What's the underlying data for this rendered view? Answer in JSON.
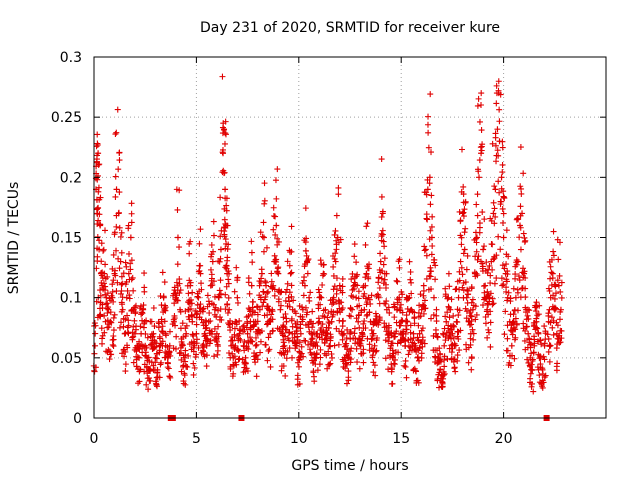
{
  "chart_data": {
    "type": "scatter",
    "title": "Day 231 of 2020, SRMTID for receiver kure",
    "xlabel": "GPS time / hours",
    "ylabel": "SRMTID / TECUs",
    "xlim": [
      0,
      25
    ],
    "ylim": [
      0,
      0.3
    ],
    "xticks": [
      0,
      5,
      10,
      15,
      20
    ],
    "xtick_labels": [
      "0",
      "5",
      "10",
      "15",
      "20"
    ],
    "yticks": [
      0,
      0.05,
      0.1,
      0.15,
      0.2,
      0.25,
      0.3
    ],
    "ytick_labels": [
      "0",
      "0.05",
      "0.1",
      "0.15",
      "0.2",
      "0.25",
      "0.3"
    ],
    "grid": true,
    "marker": "+",
    "color": "#e00000",
    "zero_markers_x": [
      3.75,
      3.85,
      7.2,
      22.1
    ],
    "series": [
      {
        "name": "SRMTID",
        "x": [
          0.05,
          0.1,
          0.15,
          0.2,
          0.25,
          0.3,
          0.35,
          0.4,
          0.5,
          0.6,
          0.7,
          0.8,
          0.9,
          1.0,
          1.1,
          1.2,
          1.3,
          1.4,
          1.5,
          1.6,
          1.7,
          1.8,
          1.9,
          2.0,
          2.1,
          2.2,
          2.3,
          2.4,
          2.5,
          2.6,
          2.7,
          2.8,
          2.9,
          3.0,
          3.1,
          3.2,
          3.3,
          3.4,
          3.5,
          3.6,
          3.7,
          3.9,
          4.0,
          4.1,
          4.2,
          4.3,
          4.4,
          4.5,
          4.6,
          4.7,
          4.8,
          4.9,
          5.0,
          5.1,
          5.2,
          5.3,
          5.4,
          5.5,
          5.6,
          5.7,
          5.8,
          5.9,
          6.0,
          6.1,
          6.2,
          6.3,
          6.35,
          6.4,
          6.45,
          6.5,
          6.6,
          6.7,
          6.8,
          6.9,
          7.0,
          7.1,
          7.3,
          7.4,
          7.5,
          7.6,
          7.7,
          7.8,
          7.9,
          8.0,
          8.1,
          8.2,
          8.3,
          8.4,
          8.5,
          8.6,
          8.7,
          8.8,
          8.9,
          9.0,
          9.1,
          9.2,
          9.3,
          9.4,
          9.5,
          9.6,
          9.7,
          9.8,
          9.9,
          10.0,
          10.1,
          10.2,
          10.3,
          10.4,
          10.5,
          10.6,
          10.7,
          10.8,
          10.9,
          11.0,
          11.1,
          11.2,
          11.3,
          11.4,
          11.5,
          11.6,
          11.7,
          11.8,
          11.9,
          12.0,
          12.1,
          12.2,
          12.3,
          12.4,
          12.5,
          12.6,
          12.7,
          12.8,
          12.9,
          13.0,
          13.1,
          13.2,
          13.3,
          13.4,
          13.5,
          13.6,
          13.7,
          13.8,
          13.9,
          14.0,
          14.1,
          14.2,
          14.3,
          14.4,
          14.5,
          14.6,
          14.7,
          14.8,
          14.9,
          15.0,
          15.1,
          15.2,
          15.3,
          15.4,
          15.5,
          15.6,
          15.7,
          15.8,
          15.9,
          16.0,
          16.1,
          16.2,
          16.3,
          16.4,
          16.5,
          16.6,
          16.7,
          16.8,
          16.9,
          17.0,
          17.1,
          17.2,
          17.3,
          17.4,
          17.5,
          17.6,
          17.7,
          17.8,
          17.9,
          18.0,
          18.1,
          18.2,
          18.3,
          18.4,
          18.5,
          18.6,
          18.7,
          18.8,
          18.9,
          19.0,
          19.1,
          19.2,
          19.3,
          19.4,
          19.5,
          19.6,
          19.7,
          19.8,
          19.9,
          20.0,
          20.1,
          20.2,
          20.3,
          20.4,
          20.5,
          20.6,
          20.7,
          20.8,
          20.9,
          21.0,
          21.1,
          21.2,
          21.3,
          21.4,
          21.5,
          21.6,
          21.7,
          21.8,
          21.9,
          22.0,
          22.2,
          22.3,
          22.4,
          22.5,
          22.6,
          22.7,
          22.8
        ],
        "y": [
          0.06,
          0.19,
          0.17,
          0.22,
          0.14,
          0.16,
          0.12,
          0.11,
          0.12,
          0.1,
          0.09,
          0.08,
          0.1,
          0.12,
          0.19,
          0.17,
          0.13,
          0.09,
          0.07,
          0.1,
          0.12,
          0.15,
          0.09,
          0.07,
          0.06,
          0.05,
          0.07,
          0.09,
          0.06,
          0.05,
          0.04,
          0.06,
          0.07,
          0.05,
          0.04,
          0.06,
          0.08,
          0.1,
          0.07,
          0.05,
          0.06,
          0.08,
          0.1,
          0.15,
          0.09,
          0.06,
          0.05,
          0.07,
          0.09,
          0.11,
          0.08,
          0.06,
          0.07,
          0.1,
          0.12,
          0.09,
          0.07,
          0.06,
          0.08,
          0.11,
          0.13,
          0.09,
          0.07,
          0.1,
          0.14,
          0.22,
          0.24,
          0.19,
          0.16,
          0.12,
          0.09,
          0.06,
          0.05,
          0.08,
          0.1,
          0.07,
          0.06,
          0.05,
          0.07,
          0.09,
          0.11,
          0.08,
          0.06,
          0.07,
          0.09,
          0.12,
          0.15,
          0.11,
          0.08,
          0.07,
          0.09,
          0.13,
          0.16,
          0.12,
          0.09,
          0.07,
          0.06,
          0.08,
          0.1,
          0.12,
          0.09,
          0.07,
          0.06,
          0.05,
          0.07,
          0.09,
          0.11,
          0.13,
          0.1,
          0.08,
          0.06,
          0.05,
          0.07,
          0.08,
          0.1,
          0.12,
          0.09,
          0.07,
          0.06,
          0.08,
          0.1,
          0.13,
          0.15,
          0.11,
          0.09,
          0.07,
          0.06,
          0.05,
          0.07,
          0.09,
          0.11,
          0.1,
          0.08,
          0.06,
          0.07,
          0.09,
          0.12,
          0.1,
          0.08,
          0.07,
          0.06,
          0.08,
          0.1,
          0.13,
          0.17,
          0.12,
          0.09,
          0.07,
          0.06,
          0.05,
          0.07,
          0.09,
          0.1,
          0.08,
          0.07,
          0.06,
          0.08,
          0.1,
          0.09,
          0.07,
          0.06,
          0.05,
          0.07,
          0.09,
          0.11,
          0.14,
          0.19,
          0.2,
          0.15,
          0.1,
          0.07,
          0.05,
          0.04,
          0.03,
          0.06,
          0.08,
          0.1,
          0.09,
          0.07,
          0.06,
          0.08,
          0.1,
          0.13,
          0.17,
          0.14,
          0.1,
          0.08,
          0.07,
          0.09,
          0.12,
          0.15,
          0.2,
          0.22,
          0.14,
          0.11,
          0.09,
          0.1,
          0.13,
          0.17,
          0.19,
          0.24,
          0.23,
          0.2,
          0.15,
          0.12,
          0.1,
          0.08,
          0.06,
          0.08,
          0.1,
          0.13,
          0.16,
          0.17,
          0.12,
          0.09,
          0.07,
          0.05,
          0.04,
          0.06,
          0.08,
          0.07,
          0.05,
          0.04,
          0.06,
          0.08,
          0.1,
          0.12,
          0.09,
          0.07,
          0.11,
          0.09
        ]
      }
    ]
  }
}
